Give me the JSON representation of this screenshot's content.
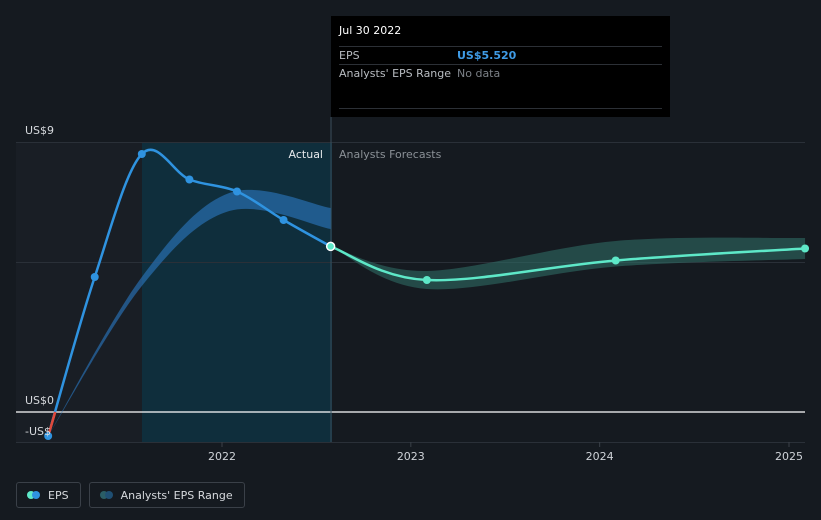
{
  "tooltip": {
    "date": "Jul 30 2022",
    "rows": [
      {
        "label": "EPS",
        "value": "US$5.520"
      },
      {
        "label": "Analysts' EPS Range",
        "value": "No data"
      }
    ]
  },
  "legend": {
    "eps_label": "EPS",
    "range_label": "Analysts' EPS Range"
  },
  "colors": {
    "background": "#151a20",
    "eps_actual": "#2f93e0",
    "eps_forecast": "#5ee8c8",
    "negative": "#e0493b",
    "actual_region": "#0e3342"
  },
  "chart_data": {
    "type": "line",
    "x_axis": {
      "ticks": [
        "2022",
        "2023",
        "2024",
        "2025"
      ]
    },
    "y_axis": {
      "top_label": "US$9",
      "zero_label": "US$0",
      "negative_label": "-US$",
      "ylim": [
        -0.9,
        9.0
      ]
    },
    "region_labels": {
      "actual": "Actual",
      "forecast": "Analysts Forecasts"
    },
    "series": [
      {
        "name": "EPS",
        "kind": "actual",
        "points": [
          {
            "x": "2021-01-30",
            "y": -0.8
          },
          {
            "x": "2021-04-30",
            "y": 4.5
          },
          {
            "x": "2021-07-30",
            "y": 8.6
          },
          {
            "x": "2021-10-30",
            "y": 7.75
          },
          {
            "x": "2022-01-30",
            "y": 7.35
          },
          {
            "x": "2022-04-30",
            "y": 6.4
          },
          {
            "x": "2022-07-30",
            "y": 5.52
          }
        ]
      },
      {
        "name": "EPS",
        "kind": "forecast",
        "points": [
          {
            "x": "2022-07-30",
            "y": 5.52
          },
          {
            "x": "2023-02-01",
            "y": 4.4
          },
          {
            "x": "2024-02-01",
            "y": 5.05
          },
          {
            "x": "2025-02-01",
            "y": 5.45
          }
        ]
      }
    ],
    "past_estimate_band": {
      "points": [
        {
          "x": "2021-01-30",
          "lo": -0.8,
          "hi": -0.8
        },
        {
          "x": "2021-07-30",
          "lo": 4.2,
          "hi": 4.5
        },
        {
          "x": "2022-01-15",
          "lo": 6.7,
          "hi": 7.3
        },
        {
          "x": "2022-07-30",
          "lo": 6.1,
          "hi": 6.8
        }
      ]
    },
    "forecast_band": {
      "points": [
        {
          "x": "2022-07-30",
          "lo": 5.52,
          "hi": 5.52
        },
        {
          "x": "2023-02-01",
          "lo": 4.1,
          "hi": 4.7
        },
        {
          "x": "2024-02-01",
          "lo": 4.85,
          "hi": 5.7
        },
        {
          "x": "2025-02-01",
          "lo": 5.1,
          "hi": 5.8
        }
      ]
    }
  }
}
